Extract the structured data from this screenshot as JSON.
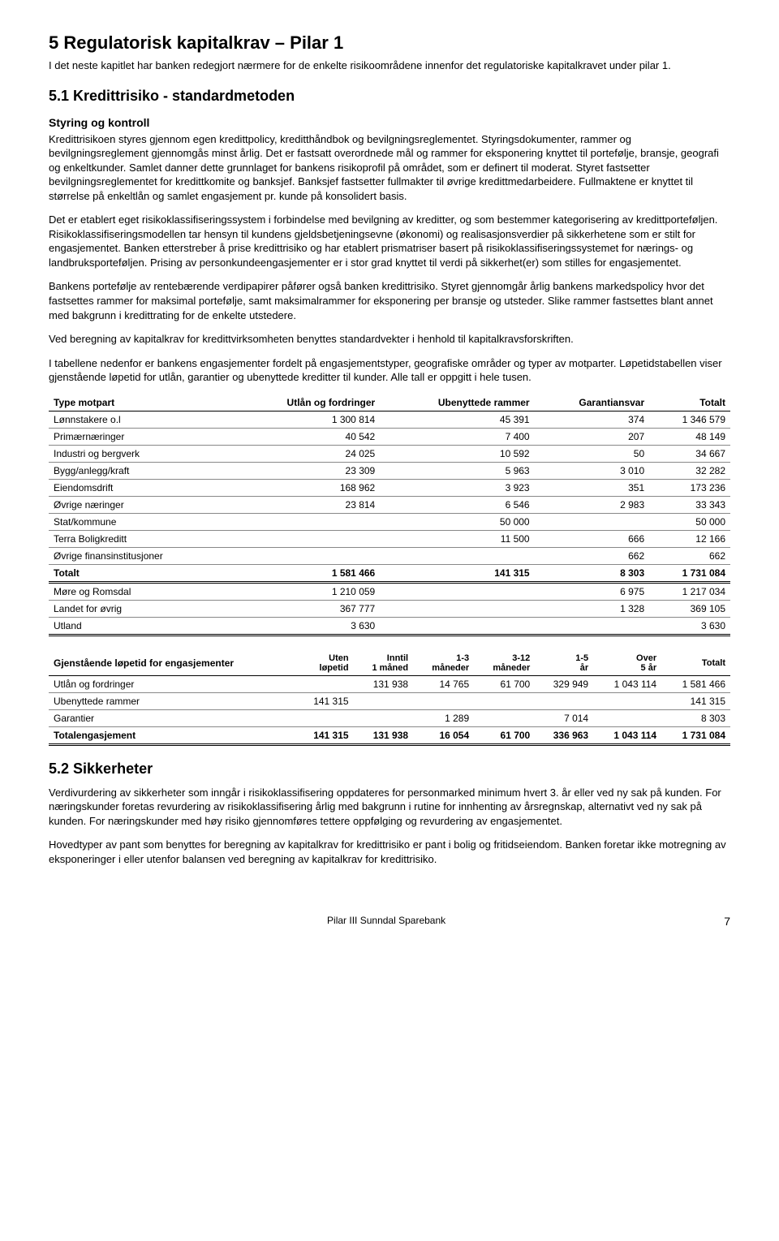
{
  "section5": {
    "title": "5  Regulatorisk kapitalkrav – Pilar 1",
    "intro": "I det neste kapitlet har banken redegjort nærmere for de enkelte risikoområdene innenfor det regulatoriske kapitalkravet under pilar 1."
  },
  "section51": {
    "title": "5.1  Kredittrisiko - standardmetoden",
    "subhead": "Styring og kontroll",
    "p1": "Kredittrisikoen styres gjennom egen kredittpolicy, kreditthåndbok og bevilgningsreglementet. Styringsdokumenter, rammer og bevilgningsreglement gjennomgås minst årlig. Det er fastsatt overordnede mål og rammer for eksponering knyttet til portefølje, bransje, geografi og enkeltkunder. Samlet danner dette grunnlaget for bankens risikoprofil på området, som er definert til moderat. Styret fastsetter bevilgningsreglementet for kredittkomite og banksjef. Banksjef fastsetter fullmakter til øvrige kredittmedarbeidere. Fullmaktene er knyttet til størrelse på enkeltlån og samlet engasjement pr. kunde på konsolidert basis.",
    "p2": "Det er etablert eget risikoklassifiseringssystem i forbindelse med bevilgning av kreditter, og som bestemmer kategorisering av kredittporteføljen. Risikoklassifiseringsmodellen tar hensyn til kundens gjeldsbetjeningsevne (økonomi) og realisasjonsverdier på sikkerhetene som er stilt for engasjementet. Banken etterstreber å prise kredittrisiko og har etablert prismatriser basert på risikoklassifiseringssystemet for nærings- og landbruksporteføljen. Prising av personkundeengasjementer er i stor grad knyttet til verdi på sikkerhet(er) som stilles for engasjementet.",
    "p3": "Bankens portefølje av rentebærende verdipapirer påfører også banken kredittrisiko. Styret gjennomgår årlig bankens markedspolicy hvor det fastsettes rammer for maksimal portefølje, samt maksimalrammer for eksponering per bransje og utsteder. Slike rammer fastsettes blant annet med bakgrunn i kredittrating for de enkelte utstedere.",
    "p4": "Ved beregning av kapitalkrav for kredittvirksomheten benyttes standardvekter i henhold til kapitalkravsforskriften.",
    "p5": "I tabellene nedenfor er bankens engasjementer fordelt på engasjementstyper, geografiske områder og typer av motparter. Løpetidstabellen viser gjenstående løpetid for utlån, garantier og ubenyttede kreditter til kunder. Alle tall er oppgitt i hele tusen."
  },
  "table1": {
    "columns": [
      "Type motpart",
      "Utlån og fordringer",
      "Ubenyttede rammer",
      "Garantiansvar",
      "Totalt"
    ],
    "rows": [
      [
        "Lønnstakere o.l",
        "1 300 814",
        "45 391",
        "374",
        "1 346 579"
      ],
      [
        "Primærnæringer",
        "40 542",
        "7 400",
        "207",
        "48 149"
      ],
      [
        "Industri og bergverk",
        "24 025",
        "10 592",
        "50",
        "34 667"
      ],
      [
        "Bygg/anlegg/kraft",
        "23 309",
        "5 963",
        "3 010",
        "32 282"
      ],
      [
        "Eiendomsdrift",
        "168 962",
        "3 923",
        "351",
        "173 236"
      ],
      [
        "Øvrige næringer",
        "23 814",
        "6 546",
        "2 983",
        "33 343"
      ],
      [
        "Stat/kommune",
        "",
        "50 000",
        "",
        "50 000"
      ],
      [
        "Terra Boligkreditt",
        "",
        "11 500",
        "666",
        "12 166"
      ],
      [
        "Øvrige finansinstitusjoner",
        "",
        "",
        "662",
        "662"
      ]
    ],
    "total": [
      "Totalt",
      "1 581 466",
      "141 315",
      "8 303",
      "1 731 084"
    ],
    "georows": [
      [
        "Møre og Romsdal",
        "1 210 059",
        "",
        "6 975",
        "1 217 034"
      ],
      [
        "Landet for øvrig",
        "367 777",
        "",
        "1 328",
        "369 105"
      ],
      [
        "Utland",
        "3 630",
        "",
        "",
        "3 630"
      ]
    ]
  },
  "table2": {
    "title": "Gjenstående løpetid for engasjementer",
    "columns": [
      "",
      "Uten løpetid",
      "Inntil 1 måned",
      "1-3 måneder",
      "3-12 måneder",
      "1-5 år",
      "Over 5 år",
      "Totalt"
    ],
    "rows": [
      [
        "Utlån og fordringer",
        "",
        "131 938",
        "14 765",
        "61 700",
        "329 949",
        "1 043 114",
        "1 581 466"
      ],
      [
        "Ubenyttede rammer",
        "141 315",
        "",
        "",
        "",
        "",
        "",
        "141 315"
      ],
      [
        "Garantier",
        "",
        "",
        "1 289",
        "",
        "7 014",
        "",
        "8 303"
      ]
    ],
    "total": [
      "Totalengasjement",
      "141 315",
      "131 938",
      "16 054",
      "61 700",
      "336 963",
      "1 043 114",
      "1 731 084"
    ]
  },
  "section52": {
    "title": "5.2  Sikkerheter",
    "p1": "Verdivurdering av sikkerheter som inngår i risikoklassifisering oppdateres for personmarked minimum hvert 3. år eller ved ny sak på kunden. For næringskunder foretas revurdering av risikoklassifisering årlig med bakgrunn i rutine for innhenting av årsregnskap, alternativt ved ny sak på kunden. For næringskunder med høy risiko gjennomføres tettere oppfølging og revurdering av engasjementet.",
    "p2": "Hovedtyper av pant som benyttes for beregning av kapitalkrav for kredittrisiko er pant i bolig og fritidseiendom. Banken foretar ikke motregning av eksponeringer i eller utenfor balansen ved beregning av kapitalkrav for kredittrisiko."
  },
  "footer": {
    "text": "Pilar III Sunndal Sparebank",
    "page": "7"
  }
}
